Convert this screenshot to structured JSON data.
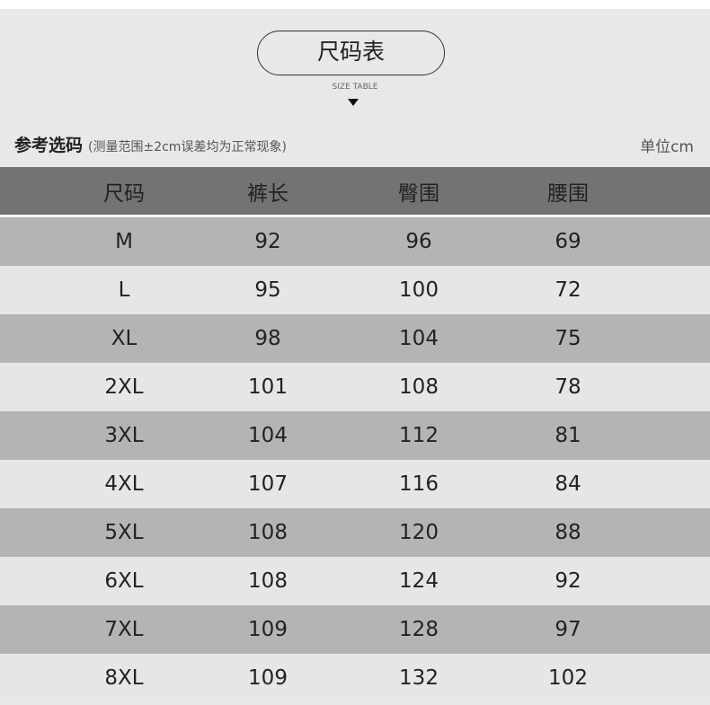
{
  "title": "尺码表",
  "subtitle": "SIZE TABLE",
  "reference_label": "参考选码",
  "note": "(测量范围±2cm误差均为正常现象)",
  "unit": "单位cm",
  "colors": {
    "header_bg": "#737373",
    "row_dark": "#b4b4b4",
    "row_light": "#e6e6e6",
    "page_bg": "#e8e8e8"
  },
  "columns": [
    "尺码",
    "裤长",
    "臀围",
    "腰围"
  ],
  "rows": [
    [
      "M",
      "92",
      "96",
      "69"
    ],
    [
      "L",
      "95",
      "100",
      "72"
    ],
    [
      "XL",
      "98",
      "104",
      "75"
    ],
    [
      "2XL",
      "101",
      "108",
      "78"
    ],
    [
      "3XL",
      "104",
      "112",
      "81"
    ],
    [
      "4XL",
      "107",
      "116",
      "84"
    ],
    [
      "5XL",
      "108",
      "120",
      "88"
    ],
    [
      "6XL",
      "108",
      "124",
      "92"
    ],
    [
      "7XL",
      "109",
      "128",
      "97"
    ],
    [
      "8XL",
      "109",
      "132",
      "102"
    ]
  ]
}
